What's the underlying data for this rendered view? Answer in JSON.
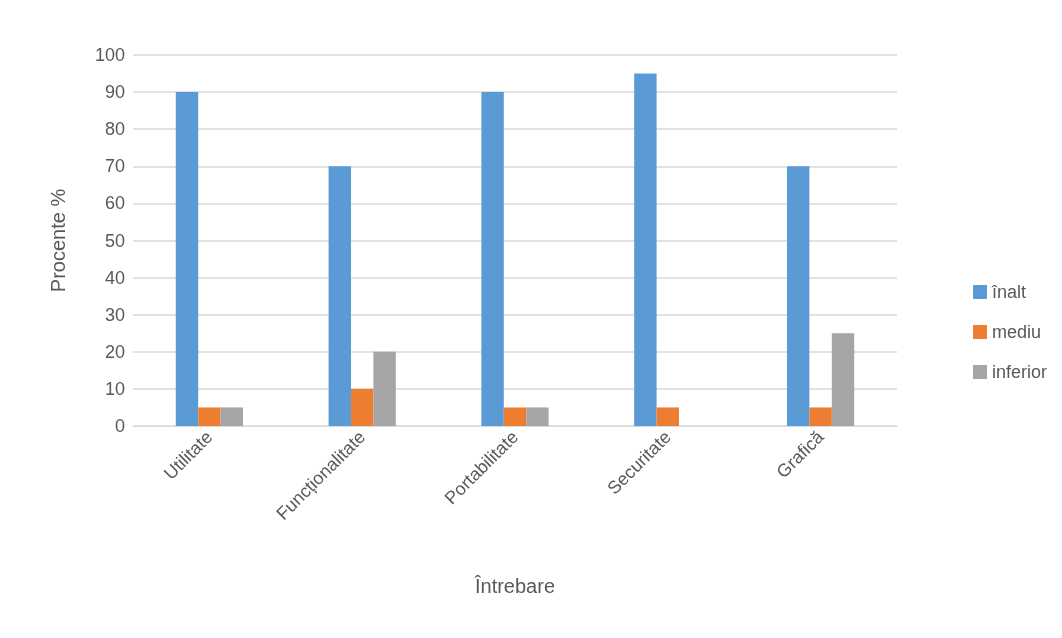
{
  "chart_data": {
    "type": "bar",
    "xlabel": "Întrebare",
    "ylabel": "Procente %",
    "categories": [
      "Utilitate",
      "Funcționalitate",
      "Portabilitate",
      "Securitate",
      "Grafică"
    ],
    "series": [
      {
        "name": "înalt",
        "color": "#5b9bd5",
        "values": [
          90,
          70,
          90,
          95,
          70
        ]
      },
      {
        "name": "mediu",
        "color": "#ed7d31",
        "values": [
          5,
          10,
          5,
          5,
          5
        ]
      },
      {
        "name": "inferior",
        "color": "#a5a5a5",
        "values": [
          5,
          20,
          5,
          0,
          25
        ]
      }
    ],
    "ylim": [
      0,
      100
    ],
    "yticks": [
      0,
      10,
      20,
      30,
      40,
      50,
      60,
      70,
      80,
      90,
      100
    ],
    "grid": "y",
    "legend": "right"
  }
}
